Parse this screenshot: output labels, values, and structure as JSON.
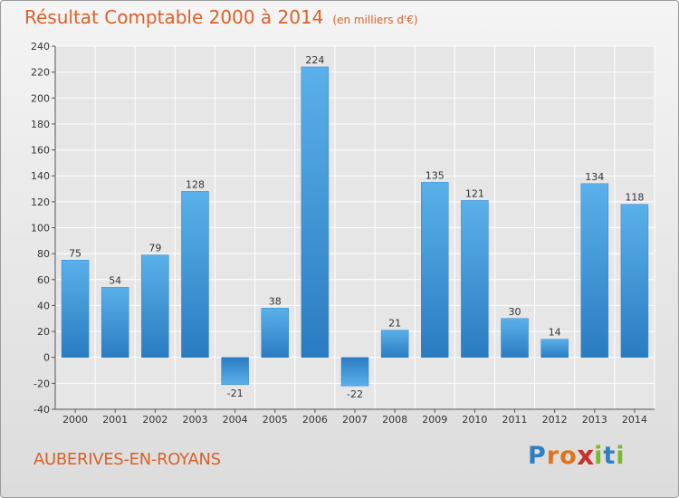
{
  "title": "Résultat Comptable 2000 à 2014",
  "unit": "(en milliers d'€)",
  "commune": "AUBERIVES-EN-ROYANS",
  "logo": {
    "letters": [
      "P",
      "r",
      "o",
      "x",
      "i",
      "t",
      "i"
    ],
    "colors": [
      "#2f7fc1",
      "#e2731e",
      "#e2731e",
      "#c9302c",
      "#7ab929",
      "#2f7fc1",
      "#7ab929"
    ]
  },
  "chart_data": {
    "type": "bar",
    "categories": [
      "2000",
      "2001",
      "2002",
      "2003",
      "2004",
      "2005",
      "2006",
      "2007",
      "2008",
      "2009",
      "2010",
      "2011",
      "2012",
      "2013",
      "2014"
    ],
    "values": [
      75,
      54,
      79,
      128,
      -21,
      38,
      224,
      -22,
      21,
      135,
      121,
      30,
      14,
      134,
      118
    ],
    "ylim": [
      -40,
      240
    ],
    "yticks": [
      -40,
      -20,
      0,
      20,
      40,
      60,
      80,
      100,
      120,
      140,
      160,
      180,
      200,
      220,
      240
    ],
    "grid": true,
    "bar_color": "#3d95d8"
  }
}
